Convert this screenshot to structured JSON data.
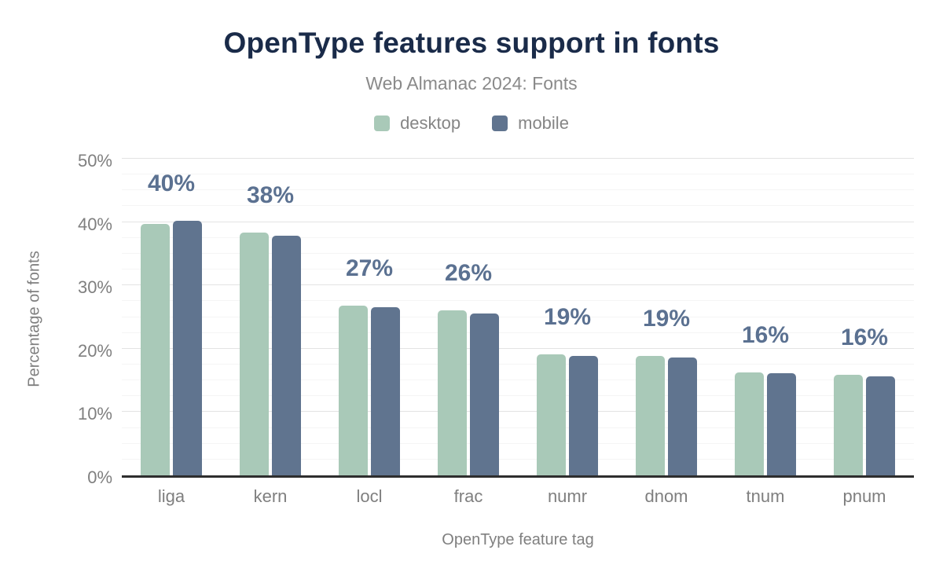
{
  "chart_data": {
    "type": "bar",
    "title": "OpenType features support in fonts",
    "subtitle": "Web Almanac 2024: Fonts",
    "xlabel": "OpenType feature tag",
    "ylabel": "Percentage of fonts",
    "categories": [
      "liga",
      "kern",
      "locl",
      "frac",
      "numr",
      "dnom",
      "tnum",
      "pnum"
    ],
    "series": [
      {
        "name": "desktop",
        "color": "#a9c9b8",
        "values": [
          39.7,
          38.4,
          26.8,
          26.1,
          19.1,
          18.9,
          16.3,
          15.9
        ]
      },
      {
        "name": "mobile",
        "color": "#60748f",
        "values": [
          40.2,
          37.8,
          26.6,
          25.6,
          18.8,
          18.6,
          16.1,
          15.6
        ]
      }
    ],
    "bar_labels": [
      "40%",
      "38%",
      "27%",
      "26%",
      "19%",
      "19%",
      "16%",
      "16%"
    ],
    "y_ticks": [
      "50%",
      "40%",
      "30%",
      "20%",
      "10%",
      "0%"
    ],
    "ylim": [
      0,
      50
    ],
    "grid": "major every 10%, minor every 2.5%, horizontal only",
    "legend_position": "top-center"
  },
  "colors": {
    "title": "#1a2b49",
    "subtitle": "#8a8a8a",
    "axis_text": "#7f7f7f",
    "data_label": "#5b7191",
    "desktop_series": "#a9c9b8",
    "mobile_series": "#60748f",
    "axis_line": "#2e2e2e",
    "grid_major": "#e3e3e3",
    "grid_minor": "#f5f5f5",
    "background": "#ffffff"
  }
}
